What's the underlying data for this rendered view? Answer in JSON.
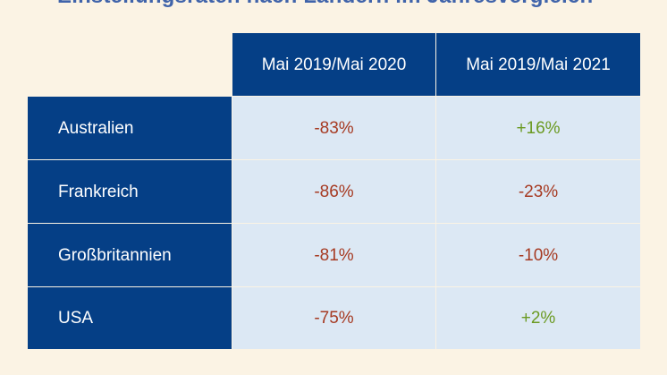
{
  "title": "Einstellungsraten nach Ländern im Jahresvergleich",
  "colors": {
    "background": "#fbf3e4",
    "header_blue": "#053f86",
    "cell_light_blue": "#dce8f4",
    "negative_red": "#a63a22",
    "positive_green": "#6b9a22"
  },
  "table": {
    "columns": [
      "Mai 2019/Mai 2020",
      "Mai 2019/Mai 2021"
    ],
    "rows": [
      {
        "label": "Australien",
        "values": [
          "-83%",
          "+16%"
        ]
      },
      {
        "label": "Frankreich",
        "values": [
          "-86%",
          "-23%"
        ]
      },
      {
        "label": "Großbritannien",
        "values": [
          "-81%",
          "-10%"
        ]
      },
      {
        "label": "USA",
        "values": [
          "-75%",
          "+2%"
        ]
      }
    ]
  },
  "chart_data": {
    "type": "table",
    "title": "Einstellungsraten nach Ländern im Jahresvergleich",
    "categories": [
      "Australien",
      "Frankreich",
      "Großbritannien",
      "USA"
    ],
    "series": [
      {
        "name": "Mai 2019/Mai 2020",
        "values": [
          -83,
          -86,
          -81,
          -75
        ]
      },
      {
        "name": "Mai 2019/Mai 2021",
        "values": [
          16,
          -23,
          -10,
          2
        ]
      }
    ],
    "unit": "%"
  }
}
